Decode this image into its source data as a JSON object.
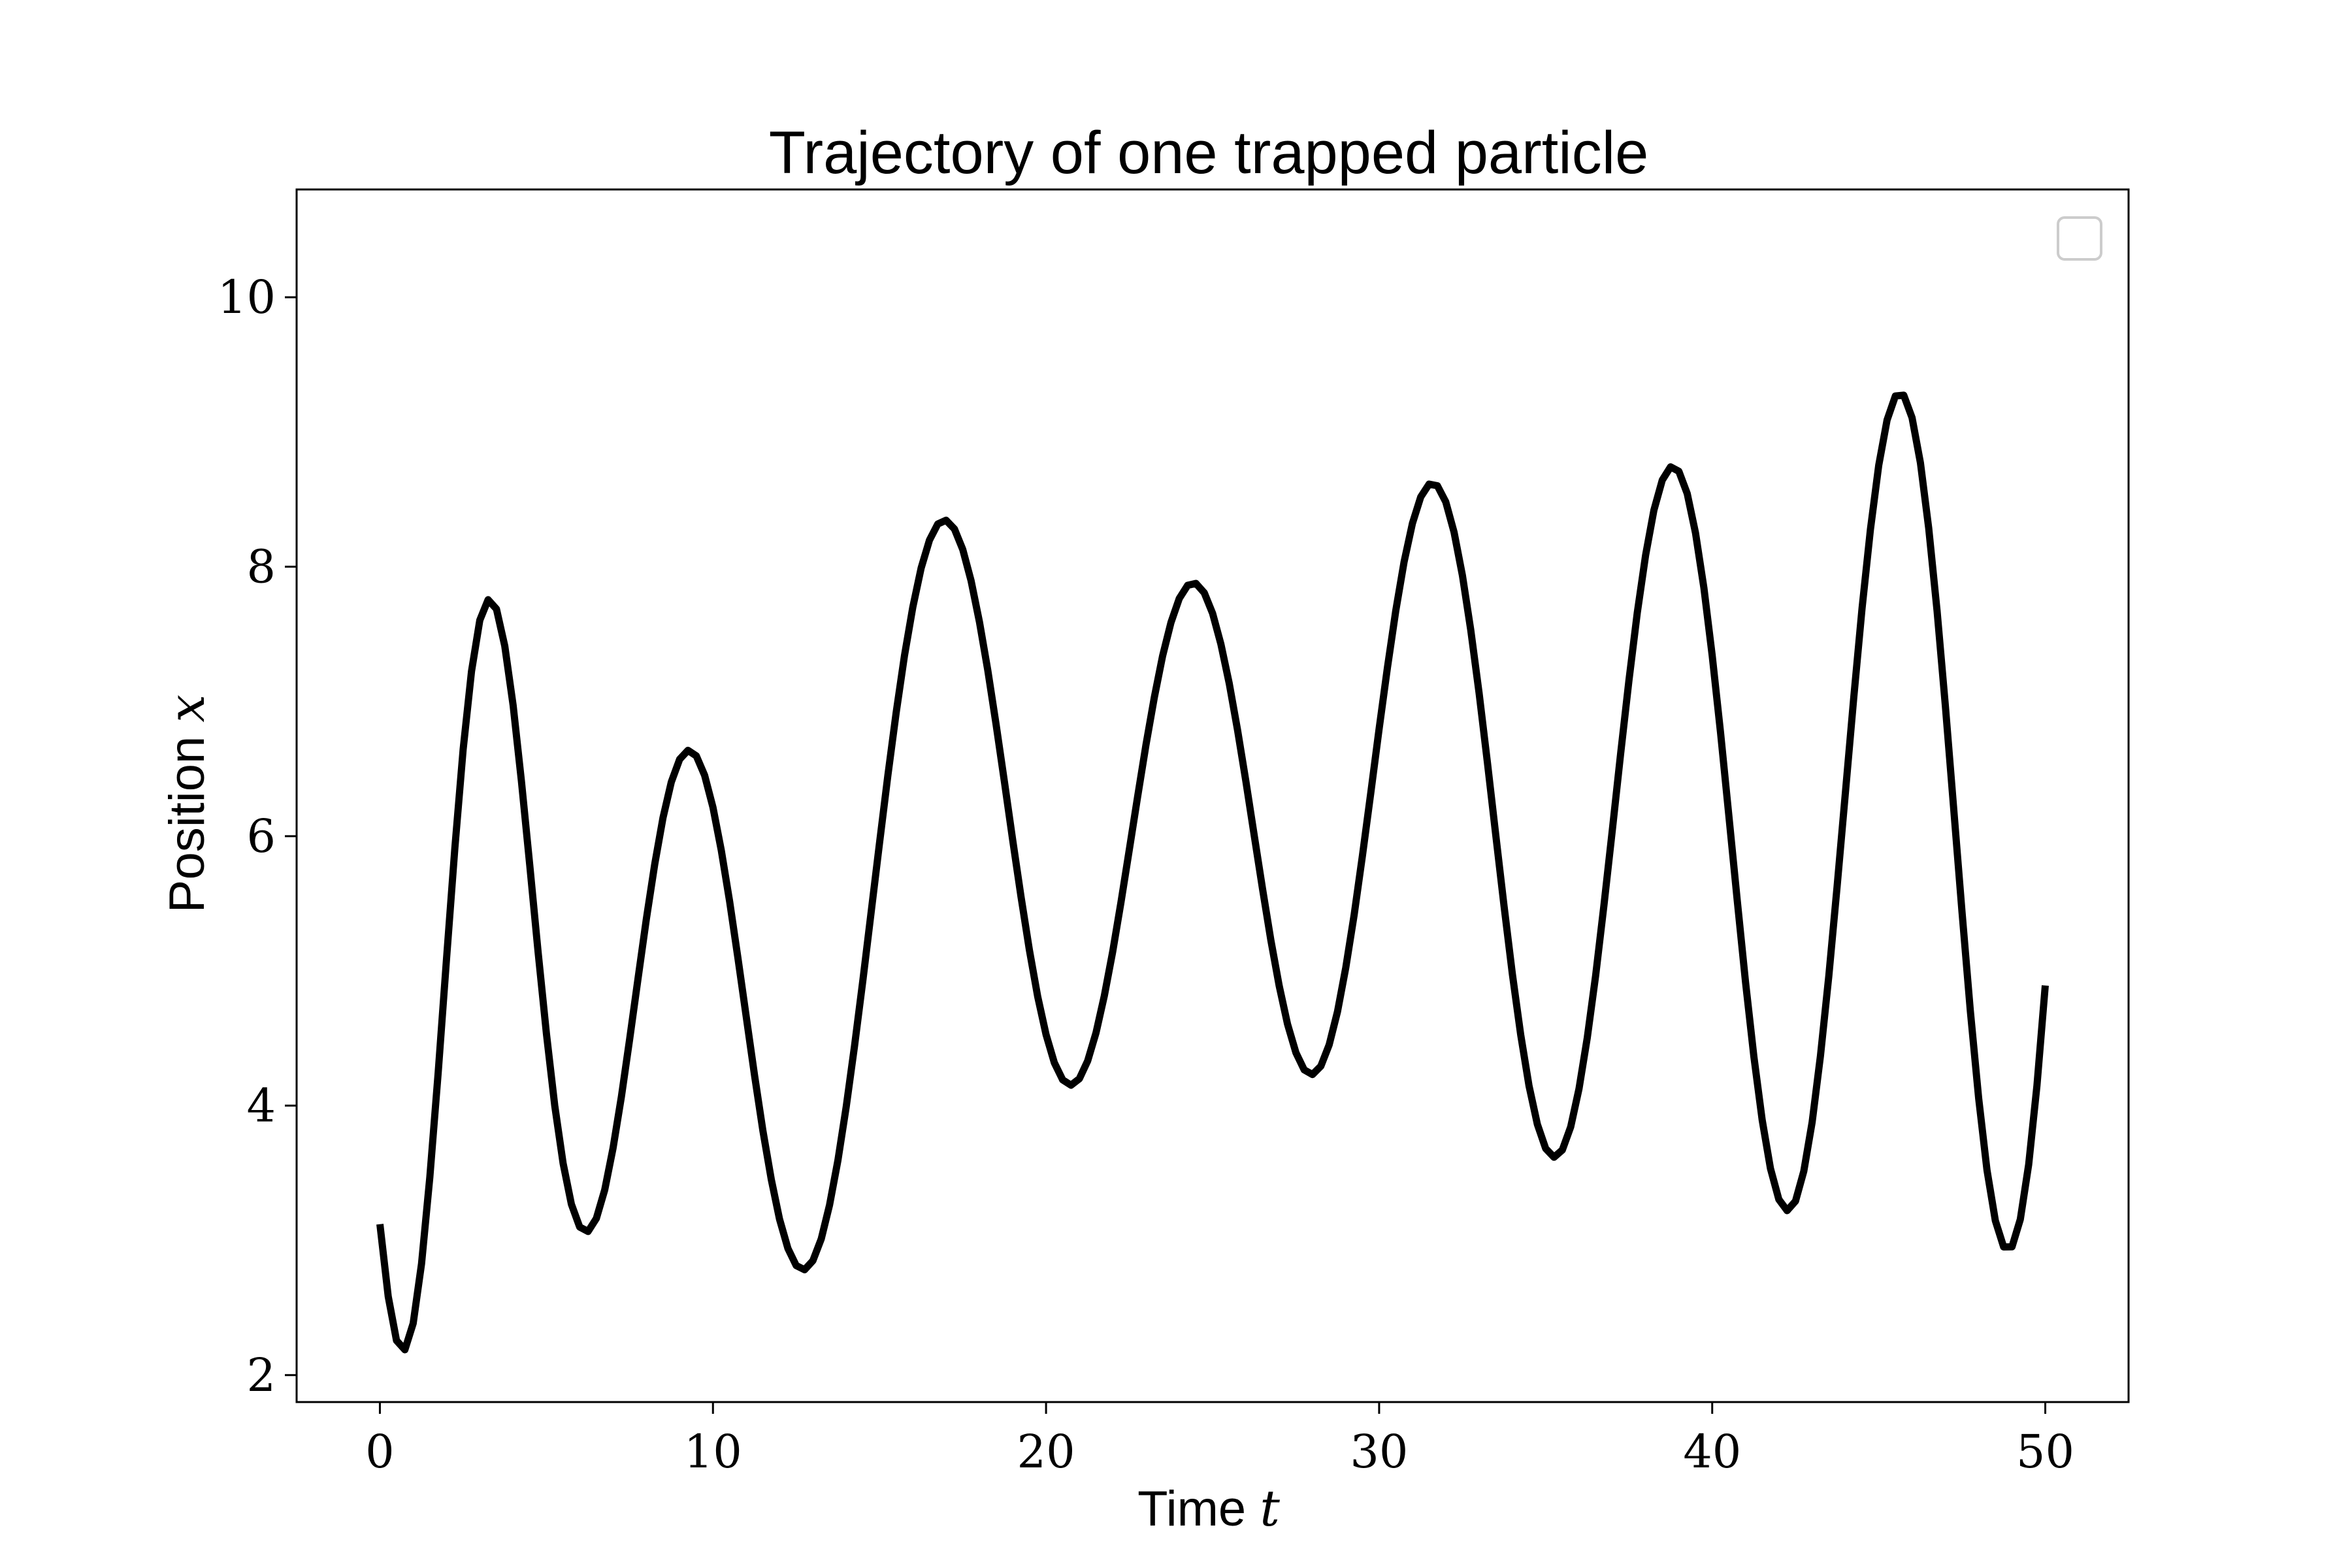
{
  "chart_data": {
    "type": "line",
    "title": "Trajectory of one trapped particle",
    "xlabel": "Time ",
    "xlabel_var": "t",
    "ylabel": "Position ",
    "ylabel_var": "x",
    "xlim": [
      -2.5,
      52.5
    ],
    "ylim": [
      1.8,
      10.8
    ],
    "xticks": [
      0,
      10,
      20,
      30,
      40,
      50
    ],
    "yticks": [
      2,
      4,
      6,
      8,
      10
    ],
    "grid": false,
    "legend": {
      "placement": "top-right",
      "entries": []
    },
    "colors": {
      "line": "#000000",
      "frame": "#000000",
      "legend_border": "#cccccc"
    },
    "series": [
      {
        "x": [
          0.0,
          0.25,
          0.5,
          0.75,
          1.0,
          1.25,
          1.5,
          1.75,
          2.0,
          2.25,
          2.5,
          2.75,
          3.0,
          3.25,
          3.5,
          3.75,
          4.0,
          4.25,
          4.5,
          4.75,
          5.0,
          5.25,
          5.5,
          5.75,
          6.0,
          6.25,
          6.5,
          6.75,
          7.0,
          7.25,
          7.5,
          7.75,
          8.0,
          8.25,
          8.5,
          8.75,
          9.0,
          9.25,
          9.5,
          9.75,
          10.0,
          10.25,
          10.5,
          10.75,
          11.0,
          11.25,
          11.5,
          11.75,
          12.0,
          12.25,
          12.5,
          12.75,
          13.0,
          13.25,
          13.5,
          13.75,
          14.0,
          14.25,
          14.5,
          14.75,
          15.0,
          15.25,
          15.5,
          15.75,
          16.0,
          16.25,
          16.5,
          16.75,
          17.0,
          17.25,
          17.5,
          17.75,
          18.0,
          18.25,
          18.5,
          18.75,
          19.0,
          19.25,
          19.5,
          19.75,
          20.0,
          20.25,
          20.5,
          20.75,
          21.0,
          21.25,
          21.5,
          21.75,
          22.0,
          22.25,
          22.5,
          22.75,
          23.0,
          23.25,
          23.5,
          23.75,
          24.0,
          24.25,
          24.5,
          24.75,
          25.0,
          25.25,
          25.5,
          25.75,
          26.0,
          26.25,
          26.5,
          26.75,
          27.0,
          27.25,
          27.5,
          27.75,
          28.0,
          28.25,
          28.5,
          28.75,
          29.0,
          29.25,
          29.5,
          29.75,
          30.0,
          30.25,
          30.5,
          30.75,
          31.0,
          31.25,
          31.5,
          31.75,
          32.0,
          32.25,
          32.5,
          32.75,
          33.0,
          33.25,
          33.5,
          33.75,
          34.0,
          34.25,
          34.5,
          34.75,
          35.0,
          35.25,
          35.5,
          35.75,
          36.0,
          36.25,
          36.5,
          36.75,
          37.0,
          37.25,
          37.5,
          37.75,
          38.0,
          38.25,
          38.5,
          38.75,
          39.0,
          39.25,
          39.5,
          39.75,
          40.0,
          40.25,
          40.5,
          40.75,
          41.0,
          41.25,
          41.5,
          41.75,
          42.0,
          42.25,
          42.5,
          42.75,
          43.0,
          43.25,
          43.5,
          43.75,
          44.0,
          44.25,
          44.5,
          44.75,
          45.0,
          45.25,
          45.5,
          45.75,
          46.0,
          46.25,
          46.5,
          46.75,
          47.0,
          47.25,
          47.5,
          47.75,
          48.0,
          48.25,
          48.5,
          48.75,
          49.0,
          49.25,
          49.5,
          49.75,
          50.0
        ],
        "y": [
          3.12,
          2.584,
          2.257,
          2.188,
          2.384,
          2.826,
          3.469,
          4.246,
          5.086,
          5.911,
          6.645,
          7.224,
          7.603,
          7.755,
          7.686,
          7.412,
          6.971,
          6.408,
          5.782,
          5.141,
          4.533,
          4.0,
          3.572,
          3.268,
          3.099,
          3.066,
          3.163,
          3.375,
          3.684,
          4.066,
          4.495,
          4.944,
          5.385,
          5.791,
          6.137,
          6.402,
          6.571,
          6.637,
          6.596,
          6.452,
          6.213,
          5.895,
          5.515,
          5.095,
          4.656,
          4.222,
          3.814,
          3.453,
          3.157,
          2.94,
          2.813,
          2.782,
          2.849,
          3.011,
          3.262,
          3.593,
          3.991,
          4.441,
          4.929,
          5.437,
          5.949,
          6.448,
          6.918,
          7.34,
          7.701,
          7.99,
          8.198,
          8.317,
          8.345,
          8.28,
          8.128,
          7.895,
          7.592,
          7.232,
          6.83,
          6.403,
          5.969,
          5.547,
          5.155,
          4.81,
          4.527,
          4.318,
          4.191,
          4.152,
          4.2,
          4.332,
          4.541,
          4.815,
          5.143,
          5.51,
          5.899,
          6.294,
          6.677,
          7.03,
          7.338,
          7.586,
          7.764,
          7.862,
          7.876,
          7.806,
          7.654,
          7.426,
          7.133,
          6.788,
          6.406,
          6.006,
          5.607,
          5.228,
          4.888,
          4.605,
          4.394,
          4.266,
          4.231,
          4.293,
          4.451,
          4.698,
          5.025,
          5.417,
          5.857,
          6.324,
          6.797,
          7.254,
          7.674,
          8.036,
          8.322,
          8.518,
          8.613,
          8.601,
          8.481,
          8.256,
          7.935,
          7.532,
          7.063,
          6.549,
          6.014,
          5.482,
          4.978,
          4.526,
          4.148,
          3.862,
          3.682,
          3.617,
          3.671,
          3.842,
          4.124,
          4.504,
          4.965,
          5.487,
          6.044,
          6.61,
          7.157,
          7.657,
          8.086,
          8.42,
          8.643,
          8.741,
          8.708,
          8.542,
          8.25,
          7.843,
          7.341,
          6.768,
          6.152,
          5.525,
          4.918,
          4.364,
          3.894,
          3.533,
          3.304,
          3.221,
          3.291,
          3.513,
          3.878,
          4.369,
          4.962,
          5.627,
          6.329,
          7.03,
          7.692,
          8.277,
          8.752,
          9.089,
          9.267,
          9.273,
          9.106,
          8.772,
          8.286,
          7.673,
          6.967,
          6.207,
          5.437,
          4.704,
          4.053,
          3.522,
          3.146,
          2.951,
          2.952,
          3.156,
          3.562,
          4.15,
          4.892
        ]
      }
    ]
  }
}
